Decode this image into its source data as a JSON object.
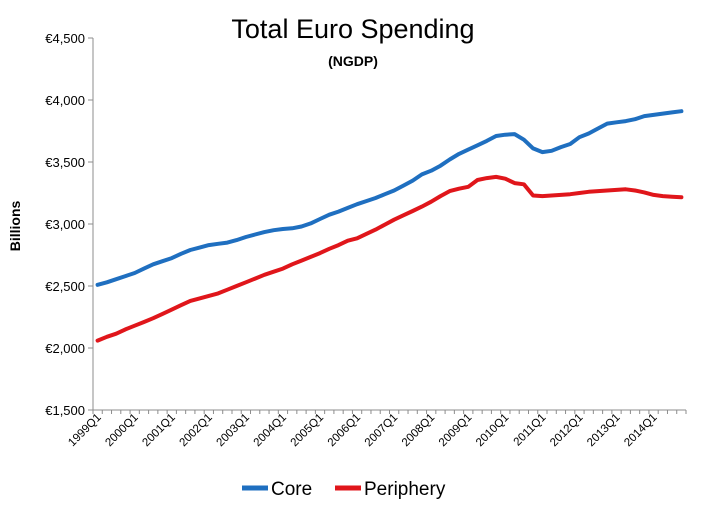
{
  "chart_data": {
    "type": "line",
    "title": "Total Euro Spending",
    "subtitle": "(NGDP)",
    "ylabel": "Billions",
    "xlabel": "",
    "ylim": [
      1500,
      4500
    ],
    "yticks": [
      1500,
      2000,
      2500,
      3000,
      3500,
      4000,
      4500
    ],
    "ytick_labels": [
      "€1,500",
      "€2,000",
      "€2,500",
      "€3,000",
      "€3,500",
      "€4,000",
      "€4,500"
    ],
    "xtick_labels": [
      "1999Q1",
      "2000Q1",
      "2001Q1",
      "2002Q1",
      "2003Q1",
      "2004Q1",
      "2005Q1",
      "2006Q1",
      "2007Q1",
      "2008Q1",
      "2009Q1",
      "2010Q1",
      "2011Q1",
      "2012Q1",
      "2013Q1",
      "2014Q1"
    ],
    "n_quarters": 64,
    "legend_position": "bottom",
    "series": [
      {
        "name": "Core",
        "color": "#1f6fc0",
        "values": [
          2510,
          2530,
          2555,
          2580,
          2605,
          2640,
          2675,
          2700,
          2725,
          2760,
          2790,
          2810,
          2830,
          2840,
          2850,
          2870,
          2895,
          2915,
          2935,
          2950,
          2960,
          2965,
          2980,
          3005,
          3040,
          3075,
          3100,
          3130,
          3160,
          3185,
          3210,
          3240,
          3270,
          3310,
          3350,
          3400,
          3430,
          3470,
          3520,
          3565,
          3600,
          3635,
          3670,
          3710,
          3720,
          3725,
          3680,
          3610,
          3580,
          3590,
          3620,
          3645,
          3700,
          3730,
          3770,
          3810,
          3820,
          3830,
          3845,
          3870,
          3880,
          3890,
          3900,
          3910
        ]
      },
      {
        "name": "Periphery",
        "color": "#e0161b",
        "values": [
          2060,
          2090,
          2115,
          2150,
          2180,
          2210,
          2240,
          2275,
          2310,
          2345,
          2380,
          2400,
          2420,
          2440,
          2470,
          2500,
          2530,
          2560,
          2590,
          2615,
          2640,
          2675,
          2705,
          2735,
          2765,
          2800,
          2830,
          2865,
          2885,
          2920,
          2955,
          2995,
          3035,
          3070,
          3105,
          3140,
          3180,
          3225,
          3265,
          3285,
          3300,
          3355,
          3370,
          3380,
          3365,
          3330,
          3320,
          3230,
          3225,
          3230,
          3235,
          3240,
          3250,
          3260,
          3265,
          3270,
          3275,
          3280,
          3270,
          3255,
          3235,
          3225,
          3220,
          3215
        ]
      }
    ]
  }
}
